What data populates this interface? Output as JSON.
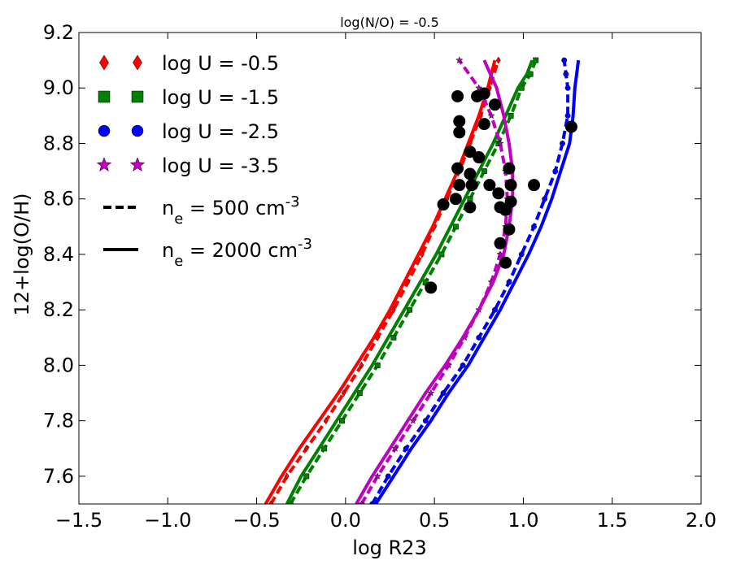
{
  "chart_data": {
    "type": "line",
    "title": "log(N/O) = -0.5",
    "xlabel": "log R23",
    "ylabel": "12+log(O/H)",
    "xlim": [
      -1.5,
      2.0
    ],
    "ylim": [
      7.5,
      9.2
    ],
    "xticks": [
      -1.5,
      -1.0,
      -0.5,
      0.0,
      0.5,
      1.0,
      1.5,
      2.0
    ],
    "xtick_labels": [
      "−1.5",
      "−1.0",
      "−0.5",
      "0.0",
      "0.5",
      "1.0",
      "1.5",
      "2.0"
    ],
    "yticks": [
      7.6,
      7.8,
      8.0,
      8.2,
      8.4,
      8.6,
      8.8,
      9.0,
      9.2
    ],
    "ytick_labels": [
      "7.6",
      "7.8",
      "8.0",
      "8.2",
      "8.4",
      "8.6",
      "8.8",
      "9.0",
      "9.2"
    ],
    "grid": false,
    "legend_position": "top-left",
    "colors": {
      "u05": "#ff0000",
      "u15": "#008000",
      "u25": "#0000ff",
      "u35": "#bf00bf",
      "obs": "#000000"
    },
    "legend": [
      {
        "marker": "diamond",
        "color": "#ff0000",
        "label": "log U = -0.5"
      },
      {
        "marker": "square",
        "color": "#008000",
        "label": "log U = -1.5"
      },
      {
        "marker": "circle",
        "color": "#0000ff",
        "label": "log U = -2.5"
      },
      {
        "marker": "star",
        "color": "#bf00bf",
        "label": "log U = -3.5"
      },
      {
        "line": "dashed",
        "base": "n",
        "sub": "e",
        "rest": " = 500 cm",
        "sup": "-3"
      },
      {
        "line": "solid",
        "base": "n",
        "sub": "e",
        "rest": " = 2000 cm",
        "sup": "-3"
      }
    ],
    "series": [
      {
        "name": "log U = -0.5, ne = 500",
        "color": "#ff0000",
        "dash": true,
        "marker": "diamond",
        "points": [
          [
            -0.42,
            7.5
          ],
          [
            -0.33,
            7.6
          ],
          [
            -0.22,
            7.7
          ],
          [
            -0.11,
            7.8
          ],
          [
            -0.01,
            7.9
          ],
          [
            0.09,
            8.0
          ],
          [
            0.18,
            8.1
          ],
          [
            0.27,
            8.2
          ],
          [
            0.35,
            8.3
          ],
          [
            0.43,
            8.4
          ],
          [
            0.5,
            8.5
          ],
          [
            0.57,
            8.6
          ],
          [
            0.64,
            8.7
          ],
          [
            0.7,
            8.8
          ],
          [
            0.76,
            8.9
          ],
          [
            0.81,
            9.0
          ],
          [
            0.86,
            9.1
          ]
        ]
      },
      {
        "name": "log U = -0.5, ne = 2000",
        "color": "#ff0000",
        "dash": false,
        "marker": "none",
        "points": [
          [
            -0.45,
            7.5
          ],
          [
            -0.36,
            7.6
          ],
          [
            -0.26,
            7.7
          ],
          [
            -0.15,
            7.8
          ],
          [
            -0.04,
            7.9
          ],
          [
            0.06,
            8.0
          ],
          [
            0.16,
            8.1
          ],
          [
            0.25,
            8.2
          ],
          [
            0.33,
            8.3
          ],
          [
            0.41,
            8.4
          ],
          [
            0.49,
            8.5
          ],
          [
            0.56,
            8.6
          ],
          [
            0.63,
            8.7
          ],
          [
            0.69,
            8.8
          ],
          [
            0.75,
            8.9
          ],
          [
            0.8,
            9.0
          ],
          [
            0.84,
            9.1
          ]
        ]
      },
      {
        "name": "log U = -1.5, ne = 500",
        "color": "#008000",
        "dash": true,
        "marker": "square",
        "points": [
          [
            -0.31,
            7.5
          ],
          [
            -0.22,
            7.6
          ],
          [
            -0.12,
            7.7
          ],
          [
            -0.02,
            7.8
          ],
          [
            0.08,
            7.9
          ],
          [
            0.18,
            8.0
          ],
          [
            0.27,
            8.1
          ],
          [
            0.36,
            8.2
          ],
          [
            0.45,
            8.3
          ],
          [
            0.54,
            8.4
          ],
          [
            0.62,
            8.5
          ],
          [
            0.7,
            8.6
          ],
          [
            0.78,
            8.7
          ],
          [
            0.86,
            8.8
          ],
          [
            0.93,
            8.9
          ],
          [
            0.99,
            9.0
          ],
          [
            1.04,
            9.05
          ],
          [
            1.07,
            9.1
          ]
        ]
      },
      {
        "name": "log U = -1.5, ne = 2000",
        "color": "#008000",
        "dash": false,
        "marker": "none",
        "points": [
          [
            -0.33,
            7.5
          ],
          [
            -0.25,
            7.6
          ],
          [
            -0.15,
            7.7
          ],
          [
            -0.05,
            7.8
          ],
          [
            0.05,
            7.9
          ],
          [
            0.15,
            8.0
          ],
          [
            0.24,
            8.1
          ],
          [
            0.33,
            8.2
          ],
          [
            0.42,
            8.3
          ],
          [
            0.51,
            8.4
          ],
          [
            0.59,
            8.5
          ],
          [
            0.67,
            8.6
          ],
          [
            0.75,
            8.7
          ],
          [
            0.83,
            8.8
          ],
          [
            0.9,
            8.9
          ],
          [
            0.97,
            9.0
          ],
          [
            1.02,
            9.05
          ],
          [
            1.05,
            9.1
          ]
        ]
      },
      {
        "name": "log U = -2.5, ne = 500",
        "color": "#0000ff",
        "dash": true,
        "marker": "circle",
        "points": [
          [
            0.15,
            7.5
          ],
          [
            0.24,
            7.6
          ],
          [
            0.34,
            7.7
          ],
          [
            0.45,
            7.8
          ],
          [
            0.55,
            7.9
          ],
          [
            0.66,
            8.0
          ],
          [
            0.75,
            8.1
          ],
          [
            0.84,
            8.2
          ],
          [
            0.92,
            8.3
          ],
          [
            0.99,
            8.4
          ],
          [
            1.06,
            8.5
          ],
          [
            1.12,
            8.6
          ],
          [
            1.18,
            8.7
          ],
          [
            1.22,
            8.8
          ],
          [
            1.25,
            8.9
          ],
          [
            1.25,
            9.0
          ],
          [
            1.24,
            9.05
          ],
          [
            1.23,
            9.1
          ]
        ]
      },
      {
        "name": "log U = -2.5, ne = 2000",
        "color": "#0000ff",
        "dash": false,
        "marker": "none",
        "points": [
          [
            0.17,
            7.5
          ],
          [
            0.27,
            7.6
          ],
          [
            0.37,
            7.7
          ],
          [
            0.48,
            7.8
          ],
          [
            0.58,
            7.9
          ],
          [
            0.69,
            8.0
          ],
          [
            0.78,
            8.1
          ],
          [
            0.87,
            8.2
          ],
          [
            0.95,
            8.3
          ],
          [
            1.03,
            8.4
          ],
          [
            1.1,
            8.5
          ],
          [
            1.16,
            8.6
          ],
          [
            1.21,
            8.7
          ],
          [
            1.26,
            8.8
          ],
          [
            1.28,
            8.9
          ],
          [
            1.29,
            9.0
          ],
          [
            1.3,
            9.05
          ],
          [
            1.31,
            9.1
          ]
        ]
      },
      {
        "name": "log U = -3.5, ne = 500",
        "color": "#bf00bf",
        "dash": true,
        "marker": "star",
        "points": [
          [
            0.09,
            7.5
          ],
          [
            0.18,
            7.6
          ],
          [
            0.28,
            7.7
          ],
          [
            0.38,
            7.8
          ],
          [
            0.48,
            7.9
          ],
          [
            0.58,
            8.0
          ],
          [
            0.67,
            8.1
          ],
          [
            0.75,
            8.2
          ],
          [
            0.82,
            8.3
          ],
          [
            0.87,
            8.4
          ],
          [
            0.9,
            8.5
          ],
          [
            0.91,
            8.6
          ],
          [
            0.9,
            8.7
          ],
          [
            0.87,
            8.8
          ],
          [
            0.82,
            8.9
          ],
          [
            0.75,
            9.0
          ],
          [
            0.64,
            9.1
          ]
        ]
      },
      {
        "name": "log U = -3.5, ne = 2000",
        "color": "#bf00bf",
        "dash": false,
        "marker": "none",
        "points": [
          [
            0.06,
            7.5
          ],
          [
            0.15,
            7.6
          ],
          [
            0.25,
            7.7
          ],
          [
            0.35,
            7.8
          ],
          [
            0.45,
            7.9
          ],
          [
            0.56,
            8.0
          ],
          [
            0.66,
            8.1
          ],
          [
            0.75,
            8.2
          ],
          [
            0.83,
            8.3
          ],
          [
            0.89,
            8.4
          ],
          [
            0.92,
            8.5
          ],
          [
            0.94,
            8.6
          ],
          [
            0.94,
            8.7
          ],
          [
            0.92,
            8.8
          ],
          [
            0.89,
            8.9
          ],
          [
            0.85,
            9.0
          ],
          [
            0.78,
            9.1
          ]
        ]
      }
    ],
    "observations": [
      [
        0.63,
        8.97
      ],
      [
        0.74,
        8.97
      ],
      [
        0.78,
        8.98
      ],
      [
        0.84,
        8.94
      ],
      [
        0.64,
        8.88
      ],
      [
        0.78,
        8.87
      ],
      [
        0.64,
        8.84
      ],
      [
        1.27,
        8.86
      ],
      [
        0.7,
        8.77
      ],
      [
        0.75,
        8.75
      ],
      [
        0.63,
        8.71
      ],
      [
        0.7,
        8.69
      ],
      [
        0.92,
        8.71
      ],
      [
        0.64,
        8.65
      ],
      [
        0.71,
        8.65
      ],
      [
        0.81,
        8.65
      ],
      [
        0.86,
        8.62
      ],
      [
        0.93,
        8.65
      ],
      [
        1.06,
        8.65
      ],
      [
        0.62,
        8.6
      ],
      [
        0.55,
        8.58
      ],
      [
        0.7,
        8.57
      ],
      [
        0.93,
        8.59
      ],
      [
        0.87,
        8.57
      ],
      [
        0.9,
        8.56
      ],
      [
        0.92,
        8.49
      ],
      [
        0.87,
        8.44
      ],
      [
        0.9,
        8.37
      ],
      [
        0.48,
        8.28
      ]
    ]
  }
}
